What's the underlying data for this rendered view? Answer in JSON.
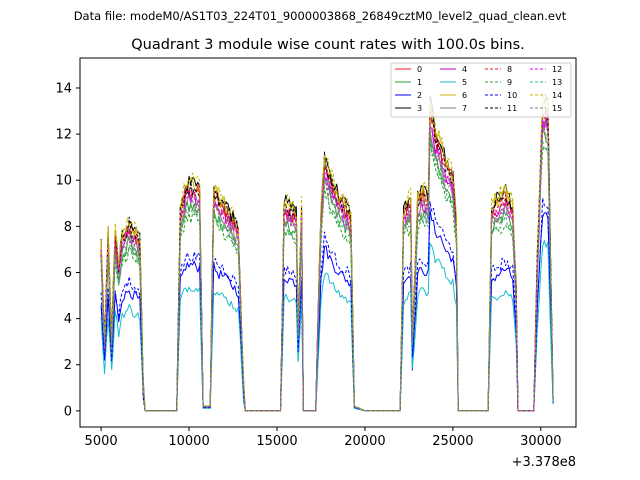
{
  "chart_data": {
    "type": "line",
    "suptitle": "Data file: modeM0/AS1T03_224T01_9000003868_26849cztM0_level2_quad_clean.evt",
    "title": "Quadrant 3 module wise count rates with 100.0s bins.",
    "xlabel": "",
    "ylabel": "",
    "x_offset_label": "+3.378e8",
    "xlim": [
      3800,
      32000
    ],
    "ylim": [
      -0.7,
      15.3
    ],
    "x_ticks": [
      5000,
      10000,
      15000,
      20000,
      25000,
      30000
    ],
    "x_tick_labels": [
      "5000",
      "10000",
      "15000",
      "20000",
      "25000",
      "30000"
    ],
    "y_ticks": [
      0,
      2,
      4,
      6,
      8,
      10,
      12,
      14
    ],
    "y_tick_labels": [
      "0",
      "2",
      "4",
      "6",
      "8",
      "10",
      "12",
      "14"
    ],
    "legend_position": "top-right",
    "approximate_base_profile": {
      "x": [
        5000,
        5200,
        5400,
        5600,
        5800,
        6000,
        6200,
        6400,
        6600,
        6800,
        7000,
        7200,
        7400,
        7500,
        9300,
        9500,
        9800,
        10200,
        10600,
        10800,
        11200,
        11400,
        11700,
        12000,
        12400,
        12800,
        13100,
        13200,
        15200,
        15400,
        15800,
        16100,
        16200,
        16400,
        16500,
        17200,
        17500,
        17700,
        17900,
        18200,
        18600,
        19000,
        19200,
        19400,
        20000,
        20100,
        22000,
        22200,
        22600,
        22700,
        23000,
        23300,
        23600,
        23700,
        24000,
        24300,
        24600,
        25000,
        25200,
        25300,
        27000,
        27200,
        27600,
        28000,
        28400,
        28600,
        28700,
        29600,
        29800,
        30100,
        30400,
        30700
      ],
      "y": [
        7.0,
        3.0,
        7.5,
        3.0,
        7.6,
        6.0,
        7.5,
        7.6,
        8.0,
        7.6,
        7.5,
        7.2,
        1.0,
        0.0,
        0.0,
        8.5,
        9.5,
        9.6,
        9.4,
        0.2,
        0.2,
        9.4,
        9.0,
        8.8,
        8.3,
        7.8,
        1.0,
        0.0,
        0.0,
        8.8,
        8.6,
        8.4,
        3.5,
        8.6,
        0.0,
        0.0,
        8.5,
        10.8,
        10.3,
        9.6,
        9.0,
        8.6,
        8.2,
        0.2,
        0.0,
        0.0,
        0.0,
        8.5,
        9.0,
        3.0,
        9.0,
        9.3,
        9.0,
        13.0,
        11.8,
        11.4,
        10.5,
        10.0,
        8.0,
        0.0,
        0.0,
        8.6,
        9.0,
        9.3,
        8.7,
        5.0,
        0.0,
        0.0,
        6.5,
        13.0,
        12.8,
        0.5
      ]
    },
    "series": [
      {
        "name": "0",
        "color": "#e41a1c",
        "style": "solid",
        "scale": 1.0
      },
      {
        "name": "1",
        "color": "#2ca02c",
        "style": "solid",
        "scale": 0.92
      },
      {
        "name": "2",
        "color": "#0000ff",
        "style": "solid",
        "scale": 0.66
      },
      {
        "name": "3",
        "color": "#000000",
        "style": "solid",
        "scale": 1.03
      },
      {
        "name": "4",
        "color": "#b000b0",
        "style": "solid",
        "scale": 0.97
      },
      {
        "name": "5",
        "color": "#17becf",
        "style": "solid",
        "scale": 0.56
      },
      {
        "name": "6",
        "color": "#c8b400",
        "style": "solid",
        "scale": 1.02
      },
      {
        "name": "7",
        "color": "#7f7f7f",
        "style": "solid",
        "scale": 0.95
      },
      {
        "name": "8",
        "color": "#e41a1c",
        "style": "dashed",
        "scale": 0.99
      },
      {
        "name": "9",
        "color": "#2ca02c",
        "style": "dashed",
        "scale": 0.88
      },
      {
        "name": "10",
        "color": "#0000ff",
        "style": "dashed",
        "scale": 0.7
      },
      {
        "name": "11",
        "color": "#000000",
        "style": "dashed",
        "scale": 1.01
      },
      {
        "name": "12",
        "color": "#ff00ff",
        "style": "dashed",
        "scale": 0.96
      },
      {
        "name": "13",
        "color": "#3cb371",
        "style": "dashed",
        "scale": 0.9
      },
      {
        "name": "14",
        "color": "#c8b400",
        "style": "dashed",
        "scale": 1.04
      },
      {
        "name": "15",
        "color": "#7f7f7f",
        "style": "dashed",
        "scale": 0.93
      }
    ]
  }
}
